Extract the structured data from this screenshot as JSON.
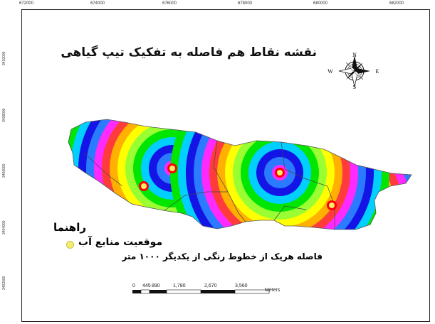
{
  "map": {
    "title": "نقشه نقاط هم فاصله به تفکیک تیپ گیاهی",
    "top_ticks": [
      "672000",
      "674000",
      "676000",
      "678000",
      "680000",
      "682000"
    ],
    "left_ticks": [
      "3410000",
      "3408000",
      "3406000",
      "3404000",
      "3402000"
    ],
    "north_arrow": {
      "icon": "compass-rose-icon",
      "n": "N",
      "s": "S",
      "e": "E",
      "w": "W"
    },
    "legend": {
      "title": "راهنما",
      "item_label": "موقعیت منابع آب",
      "item_symbol_color": "#f4ef6a",
      "note": "فاصله هریک از خطوط رنگی از یکدیگر ۱۰۰۰ متر"
    },
    "scalebar": {
      "labels": [
        "0",
        "445",
        "890",
        "1,780",
        "2,670",
        "3,560"
      ],
      "unit": "Meters"
    },
    "ring_colors": [
      "#ff2aff",
      "#2a7bff",
      "#1414e6",
      "#00cfff",
      "#00e600",
      "#99ff33",
      "#ffff00",
      "#ffb000",
      "#ff3b3b"
    ],
    "water_sources": 4
  }
}
